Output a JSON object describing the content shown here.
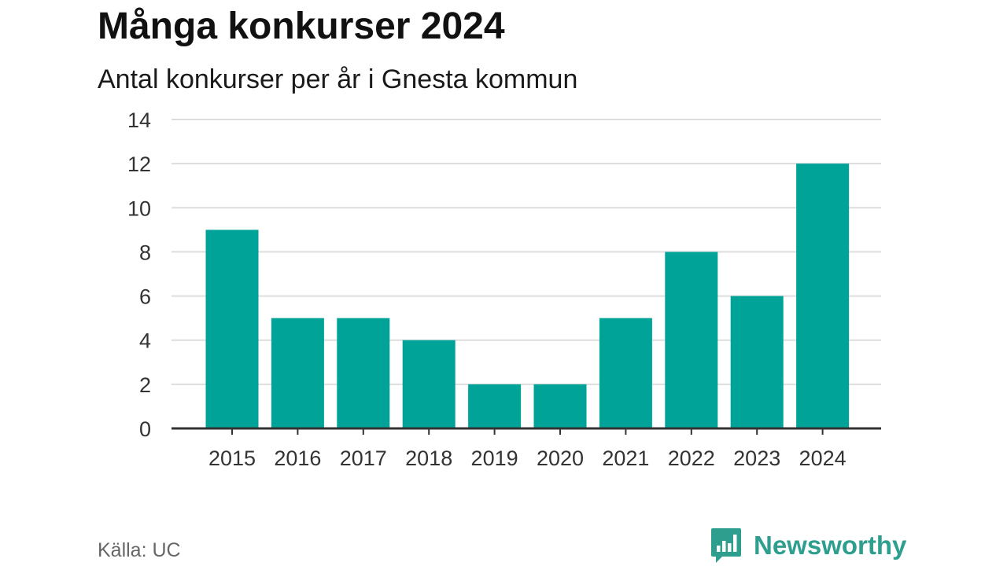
{
  "chart_data": {
    "type": "bar",
    "title": "Många konkurser 2024",
    "subtitle": "Antal konkurser per år i Gnesta kommun",
    "categories": [
      "2015",
      "2016",
      "2017",
      "2018",
      "2019",
      "2020",
      "2021",
      "2022",
      "2023",
      "2024"
    ],
    "values": [
      9,
      5,
      5,
      4,
      2,
      2,
      5,
      8,
      6,
      12
    ],
    "xlabel": "",
    "ylabel": "",
    "ylim": [
      0,
      14
    ],
    "yticks": [
      "0",
      "2",
      "4",
      "6",
      "8",
      "10",
      "12",
      "14"
    ],
    "grid": true,
    "legend": "none",
    "bar_color": "#00a398",
    "grid_color": "#dddddd",
    "axis_color": "#333333"
  },
  "footer": {
    "source": "Källa: UC",
    "brand": "Newsworthy",
    "brand_color": "#2e9e8e",
    "brand_icon": "newsworthy-logo-icon"
  }
}
